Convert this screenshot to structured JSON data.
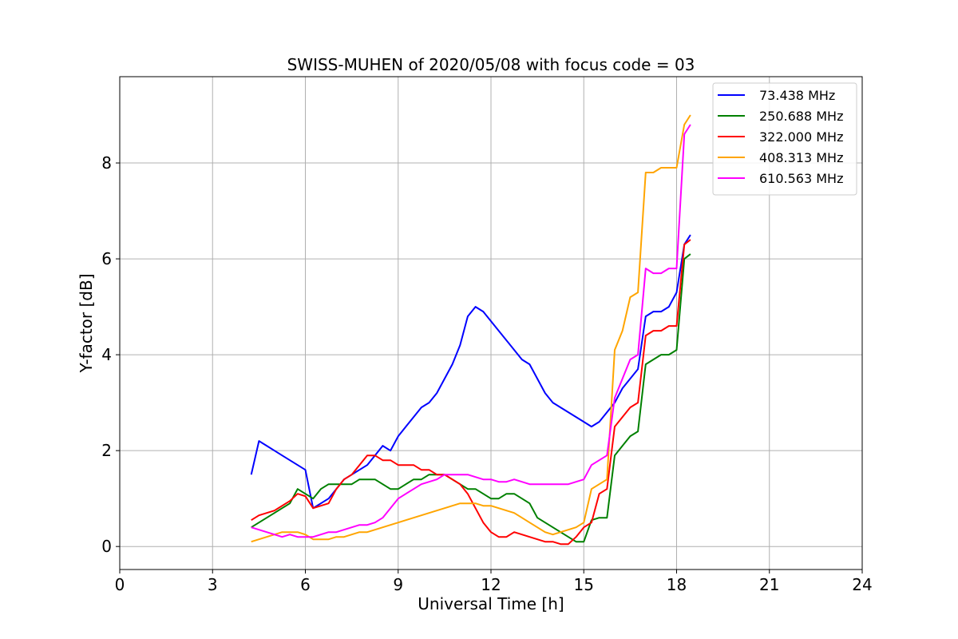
{
  "chart_data": {
    "type": "line",
    "title": "SWISS-MUHEN of 2020/05/08 with focus code = 03",
    "xlabel": "Universal Time [h]",
    "ylabel": "Y-factor [dB]",
    "xlim": [
      0,
      24
    ],
    "ylim": [
      -0.48,
      9.8
    ],
    "xticks": [
      0,
      3,
      6,
      9,
      12,
      15,
      18,
      21,
      24
    ],
    "yticks": [
      0,
      2,
      4,
      6,
      8
    ],
    "grid": true,
    "legend_position": "top-right",
    "series": [
      {
        "name": "73.438 MHz",
        "color": "#0000ff",
        "x": [
          4.25,
          4.5,
          4.75,
          5.0,
          5.25,
          5.5,
          5.75,
          6.0,
          6.25,
          6.5,
          6.75,
          7.0,
          7.25,
          7.5,
          7.75,
          8.0,
          8.25,
          8.5,
          8.75,
          9.0,
          9.25,
          9.5,
          9.75,
          10.0,
          10.25,
          10.5,
          10.75,
          11.0,
          11.25,
          11.5,
          11.75,
          12.0,
          12.25,
          12.5,
          12.75,
          13.0,
          13.25,
          13.5,
          13.75,
          14.0,
          14.25,
          14.5,
          14.75,
          15.0,
          15.25,
          15.5,
          15.75,
          16.0,
          16.25,
          16.5,
          16.75,
          17.0,
          17.25,
          17.5,
          17.75,
          18.0,
          18.25,
          18.45
        ],
        "y": [
          1.5,
          2.2,
          2.1,
          2.0,
          1.9,
          1.8,
          1.7,
          1.6,
          0.8,
          0.9,
          1.0,
          1.2,
          1.4,
          1.5,
          1.6,
          1.7,
          1.9,
          2.1,
          2.0,
          2.3,
          2.5,
          2.7,
          2.9,
          3.0,
          3.2,
          3.5,
          3.8,
          4.2,
          4.8,
          5.0,
          4.9,
          4.7,
          4.5,
          4.3,
          4.1,
          3.9,
          3.8,
          3.5,
          3.2,
          3.0,
          2.9,
          2.8,
          2.7,
          2.6,
          2.5,
          2.6,
          2.8,
          3.0,
          3.3,
          3.5,
          3.7,
          4.8,
          4.9,
          4.9,
          5.0,
          5.3,
          6.3,
          6.5
        ]
      },
      {
        "name": "250.688 MHz",
        "color": "#008000",
        "x": [
          4.25,
          4.5,
          4.75,
          5.0,
          5.25,
          5.5,
          5.75,
          6.0,
          6.25,
          6.5,
          6.75,
          7.0,
          7.25,
          7.5,
          7.75,
          8.0,
          8.25,
          8.5,
          8.75,
          9.0,
          9.25,
          9.5,
          9.75,
          10.0,
          10.25,
          10.5,
          10.75,
          11.0,
          11.25,
          11.5,
          11.75,
          12.0,
          12.25,
          12.5,
          12.75,
          13.0,
          13.25,
          13.5,
          13.75,
          14.0,
          14.25,
          14.5,
          14.75,
          15.0,
          15.25,
          15.5,
          15.75,
          16.0,
          16.25,
          16.5,
          16.75,
          17.0,
          17.25,
          17.5,
          17.75,
          18.0,
          18.25,
          18.45
        ],
        "y": [
          0.4,
          0.5,
          0.6,
          0.7,
          0.8,
          0.9,
          1.2,
          1.1,
          1.0,
          1.2,
          1.3,
          1.3,
          1.3,
          1.3,
          1.4,
          1.4,
          1.4,
          1.3,
          1.2,
          1.2,
          1.3,
          1.4,
          1.4,
          1.5,
          1.5,
          1.5,
          1.4,
          1.3,
          1.2,
          1.2,
          1.1,
          1.0,
          1.0,
          1.1,
          1.1,
          1.0,
          0.9,
          0.6,
          0.5,
          0.4,
          0.3,
          0.2,
          0.1,
          0.1,
          0.55,
          0.6,
          0.6,
          1.9,
          2.1,
          2.3,
          2.4,
          3.8,
          3.9,
          4.0,
          4.0,
          4.1,
          6.0,
          6.1
        ]
      },
      {
        "name": "322.000 MHz",
        "color": "#ff0000",
        "x": [
          4.25,
          4.5,
          4.75,
          5.0,
          5.25,
          5.5,
          5.75,
          6.0,
          6.25,
          6.5,
          6.75,
          7.0,
          7.25,
          7.5,
          7.75,
          8.0,
          8.25,
          8.5,
          8.75,
          9.0,
          9.25,
          9.5,
          9.75,
          10.0,
          10.25,
          10.5,
          10.75,
          11.0,
          11.25,
          11.5,
          11.75,
          12.0,
          12.25,
          12.5,
          12.75,
          13.0,
          13.25,
          13.5,
          13.75,
          14.0,
          14.25,
          14.5,
          14.75,
          15.0,
          15.25,
          15.5,
          15.75,
          16.0,
          16.25,
          16.5,
          16.75,
          17.0,
          17.25,
          17.5,
          17.75,
          18.0,
          18.25,
          18.45
        ],
        "y": [
          0.55,
          0.65,
          0.7,
          0.75,
          0.85,
          0.95,
          1.1,
          1.05,
          0.8,
          0.85,
          0.9,
          1.2,
          1.4,
          1.5,
          1.7,
          1.9,
          1.9,
          1.8,
          1.8,
          1.7,
          1.7,
          1.7,
          1.6,
          1.6,
          1.5,
          1.5,
          1.4,
          1.3,
          1.1,
          0.8,
          0.5,
          0.3,
          0.2,
          0.2,
          0.3,
          0.25,
          0.2,
          0.15,
          0.1,
          0.1,
          0.05,
          0.05,
          0.2,
          0.4,
          0.5,
          1.1,
          1.2,
          2.5,
          2.7,
          2.9,
          3.0,
          4.4,
          4.5,
          4.5,
          4.6,
          4.6,
          6.3,
          6.4
        ]
      },
      {
        "name": "408.313 MHz",
        "color": "#ffa500",
        "x": [
          4.25,
          4.5,
          4.75,
          5.0,
          5.25,
          5.5,
          5.75,
          6.0,
          6.25,
          6.5,
          6.75,
          7.0,
          7.25,
          7.5,
          7.75,
          8.0,
          8.25,
          8.5,
          8.75,
          9.0,
          9.25,
          9.5,
          9.75,
          10.0,
          10.25,
          10.5,
          10.75,
          11.0,
          11.25,
          11.5,
          11.75,
          12.0,
          12.25,
          12.5,
          12.75,
          13.0,
          13.25,
          13.5,
          13.75,
          14.0,
          14.25,
          14.5,
          14.75,
          15.0,
          15.25,
          15.5,
          15.75,
          16.0,
          16.25,
          16.5,
          16.75,
          17.0,
          17.25,
          17.5,
          17.75,
          18.0,
          18.25,
          18.45
        ],
        "y": [
          0.1,
          0.15,
          0.2,
          0.25,
          0.3,
          0.3,
          0.3,
          0.25,
          0.15,
          0.15,
          0.15,
          0.2,
          0.2,
          0.25,
          0.3,
          0.3,
          0.35,
          0.4,
          0.45,
          0.5,
          0.55,
          0.6,
          0.65,
          0.7,
          0.75,
          0.8,
          0.85,
          0.9,
          0.9,
          0.9,
          0.85,
          0.85,
          0.8,
          0.75,
          0.7,
          0.6,
          0.5,
          0.4,
          0.3,
          0.25,
          0.3,
          0.35,
          0.4,
          0.5,
          1.2,
          1.3,
          1.4,
          4.1,
          4.5,
          5.2,
          5.3,
          7.8,
          7.8,
          7.9,
          7.9,
          7.9,
          8.8,
          9.0
        ]
      },
      {
        "name": "610.563 MHz",
        "color": "#ff00ff",
        "x": [
          4.25,
          4.5,
          4.75,
          5.0,
          5.25,
          5.5,
          5.75,
          6.0,
          6.25,
          6.5,
          6.75,
          7.0,
          7.25,
          7.5,
          7.75,
          8.0,
          8.25,
          8.5,
          8.75,
          9.0,
          9.25,
          9.5,
          9.75,
          10.0,
          10.25,
          10.5,
          10.75,
          11.0,
          11.25,
          11.5,
          11.75,
          12.0,
          12.25,
          12.5,
          12.75,
          13.0,
          13.25,
          13.5,
          13.75,
          14.0,
          14.25,
          14.5,
          14.75,
          15.0,
          15.25,
          15.5,
          15.75,
          16.0,
          16.25,
          16.5,
          16.75,
          17.0,
          17.25,
          17.5,
          17.75,
          18.0,
          18.25,
          18.45
        ],
        "y": [
          0.4,
          0.35,
          0.3,
          0.25,
          0.2,
          0.25,
          0.2,
          0.2,
          0.2,
          0.25,
          0.3,
          0.3,
          0.35,
          0.4,
          0.45,
          0.45,
          0.5,
          0.6,
          0.8,
          1.0,
          1.1,
          1.2,
          1.3,
          1.35,
          1.4,
          1.5,
          1.5,
          1.5,
          1.5,
          1.45,
          1.4,
          1.4,
          1.35,
          1.35,
          1.4,
          1.35,
          1.3,
          1.3,
          1.3,
          1.3,
          1.3,
          1.3,
          1.35,
          1.4,
          1.7,
          1.8,
          1.9,
          3.1,
          3.5,
          3.9,
          4.0,
          5.8,
          5.7,
          5.7,
          5.8,
          5.8,
          8.6,
          8.8
        ]
      }
    ]
  }
}
